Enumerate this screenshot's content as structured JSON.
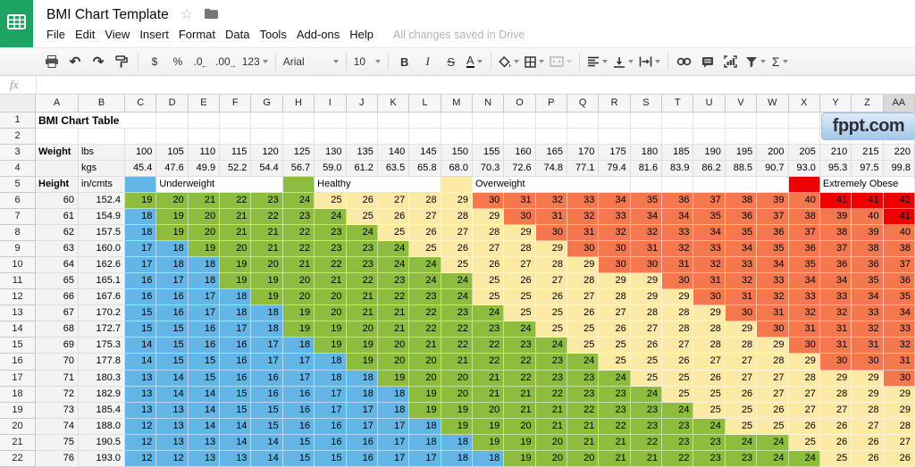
{
  "app": {
    "doc_title": "BMI Chart Template",
    "menu_items": [
      "File",
      "Edit",
      "View",
      "Insert",
      "Format",
      "Data",
      "Tools",
      "Add-ons",
      "Help"
    ],
    "save_status": "All changes saved in Drive",
    "formula_bar_label": "fx",
    "toolbar": {
      "currency": "$",
      "percent": "%",
      "decrease_decimals": ".0",
      "increase_decimals": ".00",
      "more_formats": "123",
      "font_family": "Arial",
      "font_size": "10",
      "bold": "B",
      "italic": "I",
      "strikethrough": "S",
      "text_color": "A",
      "sum": "Σ",
      "undo_glyph": "↶",
      "redo_glyph": "↷"
    }
  },
  "watermark": {
    "text": "fppt.com"
  },
  "colors": {
    "logo_green": "#1da462",
    "underweight": "#63b5e6",
    "healthy": "#8cbd3e",
    "overweight": "#fde9a6",
    "obese": "#f4774e",
    "extreme": "#ee0000",
    "label_bg": "#f3f3f3",
    "watermark_top": "#dcebfa",
    "watermark_bottom": "#a3c6e9"
  },
  "thresholds": {
    "underweight_max": 18,
    "healthy_max": 24,
    "overweight_max": 29,
    "obese_max": 40
  },
  "grid": {
    "column_headers": [
      "A",
      "B",
      "C",
      "D",
      "E",
      "F",
      "G",
      "H",
      "I",
      "J",
      "K",
      "L",
      "M",
      "N",
      "O",
      "P",
      "Q",
      "R",
      "S",
      "T",
      "U",
      "V",
      "W",
      "X",
      "Y",
      "Z",
      "AA"
    ],
    "row_count": 22,
    "selected_column_header": "AA"
  },
  "sheet": {
    "title": "BMI Chart Table",
    "weight_label": "Weight",
    "lbs_label": "lbs",
    "kgs_label": "kgs",
    "height_label": "Height",
    "unit_label": "in/cmts",
    "weights_lbs": [
      "100",
      "105",
      "110",
      "115",
      "120",
      "125",
      "130",
      "135",
      "140",
      "145",
      "150",
      "155",
      "160",
      "165",
      "170",
      "175",
      "180",
      "185",
      "190",
      "195",
      "200",
      "205",
      "210",
      "215",
      "220"
    ],
    "weights_kgs": [
      "45.4",
      "47.6",
      "49.9",
      "52.2",
      "54.4",
      "56.7",
      "59.0",
      "61.2",
      "63.5",
      "65.8",
      "68.0",
      "70.3",
      "72.6",
      "74.8",
      "77.1",
      "79.4",
      "81.6",
      "83.9",
      "86.2",
      "88.5",
      "90.7",
      "93.0",
      "95.3",
      "97.5",
      "99.8"
    ],
    "legend": [
      {
        "label": "Underweight",
        "category": "underweight",
        "swatch_col": 0,
        "label_col": 1,
        "label_span": 4
      },
      {
        "label": "Healthy",
        "category": "healthy",
        "swatch_col": 5,
        "label_col": 6,
        "label_span": 4
      },
      {
        "label": "Overweight",
        "category": "overweight",
        "swatch_col": 10,
        "label_col": 11,
        "label_span": 5
      },
      {
        "label": "Extremely Obese",
        "category": "extreme",
        "swatch_col": 21,
        "label_col": 22,
        "label_span": 3
      }
    ],
    "bmi_rows": [
      {
        "inches": "60",
        "cm": "152.4",
        "values": [
          19,
          20,
          21,
          22,
          23,
          24,
          25,
          26,
          27,
          28,
          29,
          30,
          31,
          32,
          33,
          34,
          35,
          36,
          37,
          38,
          39,
          40,
          41,
          41,
          42
        ]
      },
      {
        "inches": "61",
        "cm": "154.9",
        "values": [
          18,
          19,
          20,
          21,
          22,
          23,
          24,
          25,
          26,
          27,
          28,
          29,
          30,
          31,
          32,
          33,
          34,
          34,
          35,
          36,
          37,
          38,
          39,
          40,
          41
        ]
      },
      {
        "inches": "62",
        "cm": "157.5",
        "values": [
          18,
          19,
          20,
          21,
          21,
          22,
          23,
          24,
          25,
          26,
          27,
          28,
          29,
          30,
          31,
          32,
          32,
          33,
          34,
          35,
          36,
          37,
          38,
          39,
          40
        ]
      },
      {
        "inches": "63",
        "cm": "160.0",
        "values": [
          17,
          18,
          19,
          20,
          21,
          22,
          23,
          23,
          24,
          25,
          26,
          27,
          28,
          29,
          30,
          30,
          31,
          32,
          33,
          34,
          35,
          36,
          37,
          38,
          38
        ]
      },
      {
        "inches": "64",
        "cm": "162.6",
        "values": [
          17,
          18,
          18,
          19,
          20,
          21,
          22,
          23,
          24,
          24,
          25,
          26,
          27,
          28,
          29,
          30,
          30,
          31,
          32,
          33,
          34,
          35,
          36,
          36,
          37
        ]
      },
      {
        "inches": "65",
        "cm": "165.1",
        "values": [
          16,
          17,
          18,
          19,
          19,
          20,
          21,
          22,
          23,
          24,
          24,
          25,
          26,
          27,
          28,
          29,
          29,
          30,
          31,
          32,
          33,
          34,
          34,
          35,
          36
        ]
      },
      {
        "inches": "66",
        "cm": "167.6",
        "values": [
          16,
          16,
          17,
          18,
          19,
          20,
          20,
          21,
          22,
          23,
          24,
          25,
          25,
          26,
          27,
          28,
          29,
          29,
          30,
          31,
          32,
          33,
          33,
          34,
          35
        ]
      },
      {
        "inches": "67",
        "cm": "170.2",
        "values": [
          15,
          16,
          17,
          18,
          18,
          19,
          20,
          21,
          21,
          22,
          23,
          24,
          25,
          25,
          26,
          27,
          28,
          28,
          29,
          30,
          31,
          32,
          32,
          33,
          34
        ]
      },
      {
        "inches": "68",
        "cm": "172.7",
        "values": [
          15,
          15,
          16,
          17,
          18,
          19,
          19,
          20,
          21,
          22,
          22,
          23,
          24,
          25,
          25,
          26,
          27,
          28,
          28,
          29,
          30,
          31,
          31,
          32,
          33
        ]
      },
      {
        "inches": "69",
        "cm": "175.3",
        "values": [
          14,
          15,
          16,
          16,
          17,
          18,
          19,
          19,
          20,
          21,
          22,
          22,
          23,
          24,
          25,
          25,
          26,
          27,
          28,
          28,
          29,
          30,
          31,
          31,
          32
        ]
      },
      {
        "inches": "70",
        "cm": "177.8",
        "values": [
          14,
          15,
          15,
          16,
          17,
          17,
          18,
          19,
          20,
          20,
          21,
          22,
          22,
          23,
          24,
          25,
          25,
          26,
          27,
          27,
          28,
          29,
          30,
          30,
          31
        ]
      },
      {
        "inches": "71",
        "cm": "180.3",
        "values": [
          13,
          14,
          15,
          16,
          16,
          17,
          18,
          18,
          19,
          20,
          20,
          21,
          22,
          23,
          23,
          24,
          25,
          25,
          26,
          27,
          27,
          28,
          29,
          29,
          30
        ]
      },
      {
        "inches": "72",
        "cm": "182.9",
        "values": [
          13,
          14,
          14,
          15,
          16,
          16,
          17,
          18,
          18,
          19,
          20,
          21,
          21,
          22,
          23,
          23,
          24,
          25,
          25,
          26,
          27,
          27,
          28,
          29,
          29
        ]
      },
      {
        "inches": "73",
        "cm": "185.4",
        "values": [
          13,
          13,
          14,
          15,
          15,
          16,
          17,
          17,
          18,
          19,
          19,
          20,
          21,
          21,
          22,
          23,
          23,
          24,
          25,
          25,
          26,
          27,
          27,
          28,
          29
        ]
      },
      {
        "inches": "74",
        "cm": "188.0",
        "values": [
          12,
          13,
          14,
          14,
          15,
          16,
          16,
          17,
          17,
          18,
          19,
          19,
          20,
          21,
          21,
          22,
          23,
          23,
          24,
          25,
          25,
          26,
          26,
          27,
          28
        ]
      },
      {
        "inches": "75",
        "cm": "190.5",
        "values": [
          12,
          13,
          13,
          14,
          14,
          15,
          16,
          16,
          17,
          18,
          18,
          19,
          19,
          20,
          21,
          21,
          22,
          23,
          23,
          24,
          24,
          25,
          26,
          26,
          27
        ]
      },
      {
        "inches": "76",
        "cm": "193.0",
        "values": [
          12,
          12,
          13,
          13,
          14,
          15,
          15,
          16,
          17,
          17,
          18,
          18,
          19,
          20,
          20,
          21,
          21,
          22,
          23,
          23,
          24,
          24,
          25,
          26,
          26
        ]
      }
    ]
  }
}
